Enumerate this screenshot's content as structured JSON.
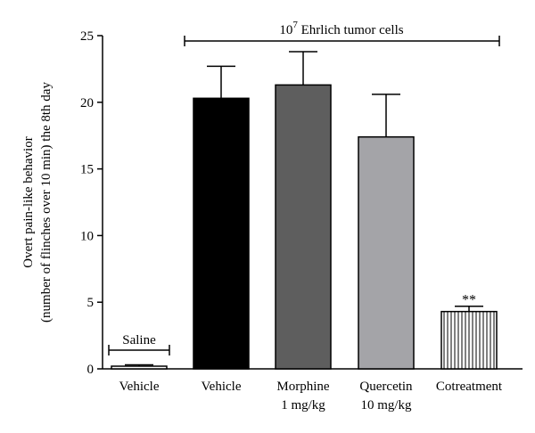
{
  "chart_data": {
    "type": "bar",
    "ylabel_line1": "Overt pain-like behavior",
    "ylabel_line2": "(number of flinches over 10 min) the 8th day",
    "ylim": [
      0,
      25
    ],
    "yticks": [
      "0",
      "5",
      "10",
      "15",
      "20",
      "25"
    ],
    "grid": false,
    "legend": "none",
    "categories": [
      {
        "line1": "Vehicle",
        "line2": ""
      },
      {
        "line1": "Vehicle",
        "line2": ""
      },
      {
        "line1": "Morphine",
        "line2": "1 mg/kg"
      },
      {
        "line1": "Quercetin",
        "line2": "10 mg/kg"
      },
      {
        "line1": "Cotreatment",
        "line2": ""
      }
    ],
    "values": [
      0.2,
      20.3,
      21.3,
      17.4,
      4.3
    ],
    "errors": [
      0.1,
      2.4,
      2.5,
      3.2,
      0.4
    ],
    "bar_colors": [
      "#ffffff",
      "#000000",
      "#5e5e5e",
      "#a4a4a8",
      "#ffffff"
    ],
    "bar_patterns": [
      "none",
      "none",
      "none",
      "none",
      "vertical-lines"
    ],
    "annotations": {
      "saline_label": "Saline",
      "tumor_label_base": "10",
      "tumor_label_exp": "7",
      "tumor_label_rest": " Ehrlich tumor cells",
      "significance": "**"
    }
  }
}
